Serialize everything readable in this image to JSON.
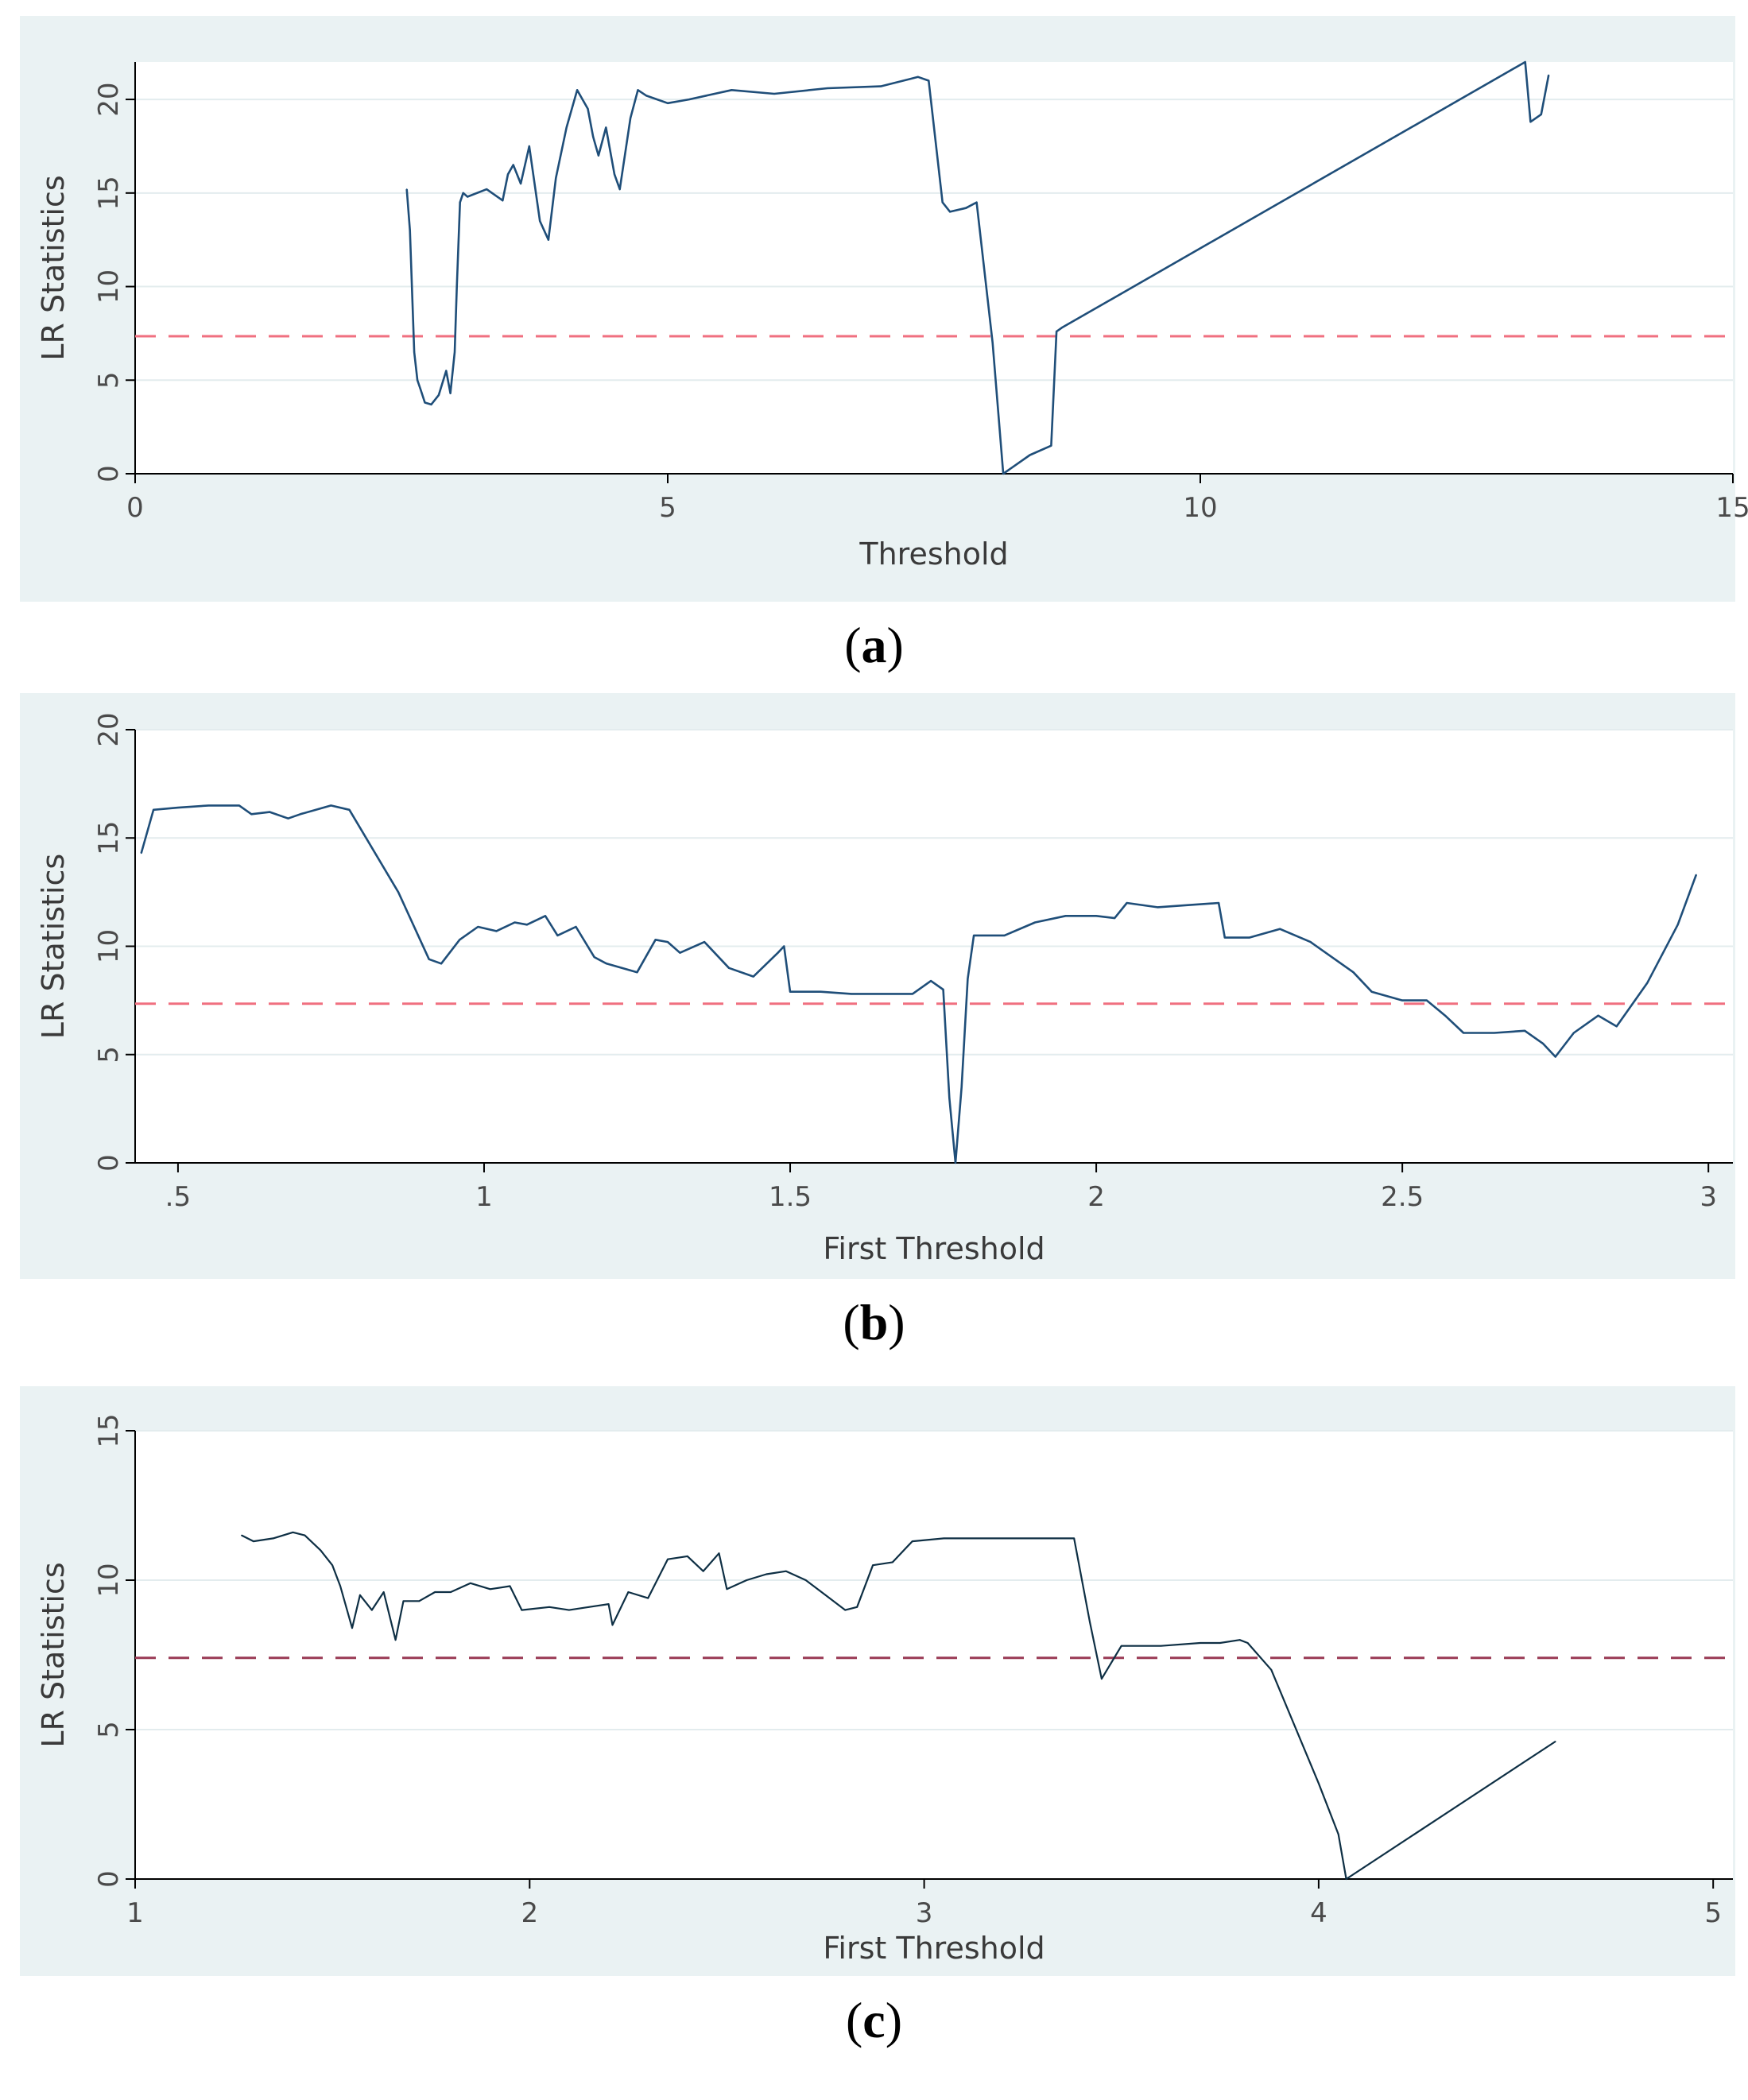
{
  "colors": {
    "panel_bg": "#eaf2f3",
    "plot_bg": "#ffffff",
    "grid": "#e3ecee",
    "axis": "#000000",
    "line_ab": "#1f4e79",
    "line_c": "#0e2f44",
    "ref_ab": "#f07080",
    "ref_c": "#9a3a55"
  },
  "chart_data": [
    {
      "type": "line",
      "panel_label": "a",
      "xlabel": "Threshold",
      "ylabel": "LR Statistics",
      "xlim": [
        0,
        15
      ],
      "ylim": [
        0,
        22
      ],
      "xticks": [
        0,
        5,
        10,
        15
      ],
      "xtick_labels": [
        "0",
        "5",
        "10",
        "15"
      ],
      "yticks": [
        0,
        5,
        10,
        15,
        20
      ],
      "ytick_labels": [
        "0",
        "5",
        "10",
        "15",
        "20"
      ],
      "critical_value": 7.35,
      "x": [
        2.55,
        2.58,
        2.62,
        2.65,
        2.68,
        2.72,
        2.78,
        2.85,
        2.92,
        2.96,
        3.0,
        3.02,
        3.05,
        3.08,
        3.12,
        3.3,
        3.45,
        3.5,
        3.55,
        3.62,
        3.7,
        3.8,
        3.88,
        3.95,
        4.05,
        4.15,
        4.2,
        4.25,
        4.3,
        4.35,
        4.42,
        4.5,
        4.55,
        4.65,
        4.72,
        4.8,
        5.0,
        5.2,
        5.6,
        6.0,
        6.5,
        7.0,
        7.35,
        7.45,
        7.58,
        7.65,
        7.8,
        7.9,
        8.05,
        8.15,
        8.4,
        8.6,
        8.65,
        8.7,
        13.05,
        13.1,
        13.2,
        13.27
      ],
      "y": [
        15.2,
        13.0,
        6.5,
        5.0,
        4.5,
        3.8,
        3.7,
        4.2,
        5.5,
        4.3,
        6.5,
        10.0,
        14.5,
        15.0,
        14.8,
        15.2,
        14.6,
        16.0,
        16.5,
        15.5,
        17.5,
        13.5,
        12.5,
        15.8,
        18.5,
        20.5,
        20.0,
        19.5,
        18.0,
        17.0,
        18.5,
        16.0,
        15.2,
        19.0,
        20.5,
        20.2,
        19.8,
        20.0,
        20.5,
        20.3,
        20.6,
        20.7,
        21.2,
        21.0,
        14.5,
        14.0,
        14.2,
        14.5,
        7.0,
        0.0,
        1.0,
        1.5,
        7.6,
        7.8,
        22.0,
        18.8,
        19.2,
        21.3
      ]
    },
    {
      "type": "line",
      "panel_label": "b",
      "xlabel": "First Threshold",
      "ylabel": "LR Statistics",
      "xlim": [
        0.43,
        3.04
      ],
      "ylim": [
        0,
        20
      ],
      "xticks": [
        0.5,
        1,
        1.5,
        2,
        2.5,
        3
      ],
      "xtick_labels": [
        ".5",
        "1",
        "1.5",
        "2",
        "2.5",
        "3"
      ],
      "yticks": [
        0,
        5,
        10,
        15,
        20
      ],
      "ytick_labels": [
        "0",
        "5",
        "10",
        "15",
        "20"
      ],
      "critical_value": 7.35,
      "x": [
        0.44,
        0.46,
        0.5,
        0.55,
        0.6,
        0.62,
        0.65,
        0.68,
        0.7,
        0.75,
        0.78,
        0.86,
        0.91,
        0.93,
        0.96,
        0.99,
        1.02,
        1.05,
        1.07,
        1.1,
        1.12,
        1.15,
        1.18,
        1.2,
        1.25,
        1.28,
        1.3,
        1.32,
        1.36,
        1.4,
        1.44,
        1.48,
        1.49,
        1.5,
        1.55,
        1.6,
        1.65,
        1.7,
        1.73,
        1.75,
        1.76,
        1.77,
        1.78,
        1.79,
        1.8,
        1.85,
        1.9,
        1.95,
        2.0,
        2.03,
        2.05,
        2.1,
        2.15,
        2.2,
        2.21,
        2.25,
        2.3,
        2.35,
        2.4,
        2.42,
        2.45,
        2.5,
        2.54,
        2.57,
        2.6,
        2.65,
        2.7,
        2.73,
        2.75,
        2.78,
        2.82,
        2.85,
        2.9,
        2.95,
        2.98
      ],
      "y": [
        14.3,
        16.3,
        16.4,
        16.5,
        16.5,
        16.1,
        16.2,
        15.9,
        16.1,
        16.5,
        16.3,
        12.5,
        9.4,
        9.2,
        10.3,
        10.9,
        10.7,
        11.1,
        11.0,
        11.4,
        10.5,
        10.9,
        9.5,
        9.2,
        8.8,
        10.3,
        10.2,
        9.7,
        10.2,
        9.0,
        8.6,
        9.7,
        10.0,
        7.9,
        7.9,
        7.8,
        7.8,
        7.8,
        8.4,
        8.0,
        3.0,
        0.0,
        3.5,
        8.5,
        10.5,
        10.5,
        11.1,
        11.4,
        11.4,
        11.3,
        12.0,
        11.8,
        11.9,
        12.0,
        10.4,
        10.4,
        10.8,
        10.2,
        9.2,
        8.8,
        7.9,
        7.5,
        7.5,
        6.8,
        6.0,
        6.0,
        6.1,
        5.5,
        4.9,
        6.0,
        6.8,
        6.3,
        8.3,
        11.0,
        13.3
      ]
    },
    {
      "type": "line",
      "panel_label": "c",
      "xlabel": "First Threshold",
      "ylabel": "LR Statistics",
      "xlim": [
        1,
        5.05
      ],
      "ylim": [
        0,
        15
      ],
      "xticks": [
        1,
        2,
        3,
        4,
        5
      ],
      "xtick_labels": [
        "1",
        "2",
        "3",
        "4",
        "5"
      ],
      "yticks": [
        0,
        5,
        10,
        15
      ],
      "ytick_labels": [
        "0",
        "5",
        "10",
        "15"
      ],
      "critical_value": 7.4,
      "x": [
        1.27,
        1.3,
        1.35,
        1.4,
        1.43,
        1.47,
        1.5,
        1.52,
        1.55,
        1.57,
        1.6,
        1.63,
        1.66,
        1.68,
        1.72,
        1.76,
        1.8,
        1.85,
        1.9,
        1.95,
        1.98,
        2.05,
        2.1,
        2.15,
        2.2,
        2.21,
        2.25,
        2.3,
        2.35,
        2.4,
        2.44,
        2.48,
        2.5,
        2.55,
        2.6,
        2.65,
        2.7,
        2.75,
        2.8,
        2.83,
        2.87,
        2.92,
        2.97,
        3.05,
        3.1,
        3.2,
        3.3,
        3.38,
        3.42,
        3.45,
        3.5,
        3.6,
        3.7,
        3.75,
        3.8,
        3.82,
        3.88,
        4.0,
        4.05,
        4.07,
        4.6
      ],
      "y": [
        11.5,
        11.3,
        11.4,
        11.6,
        11.5,
        11.0,
        10.5,
        9.8,
        8.4,
        9.5,
        9.0,
        9.6,
        8.0,
        9.3,
        9.3,
        9.6,
        9.6,
        9.9,
        9.7,
        9.8,
        9.0,
        9.1,
        9.0,
        9.1,
        9.2,
        8.5,
        9.6,
        9.4,
        10.7,
        10.8,
        10.3,
        10.9,
        9.7,
        10.0,
        10.2,
        10.3,
        10.0,
        9.5,
        9.0,
        9.1,
        10.5,
        10.6,
        11.3,
        11.4,
        11.4,
        11.4,
        11.4,
        11.4,
        8.6,
        6.7,
        7.8,
        7.8,
        7.9,
        7.9,
        8.0,
        7.9,
        7.0,
        3.2,
        1.5,
        0.0,
        4.6
      ]
    }
  ]
}
